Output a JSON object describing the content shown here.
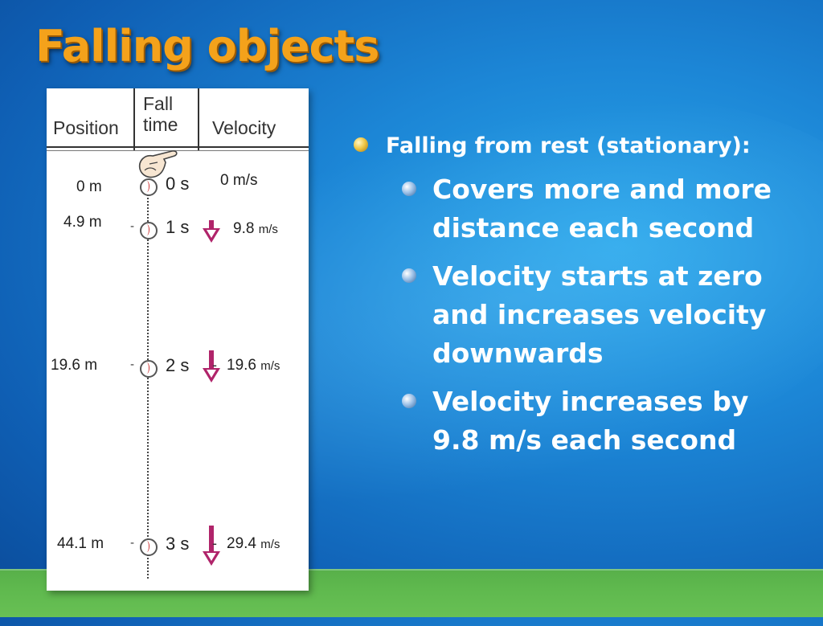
{
  "slide": {
    "title": "Falling objects"
  },
  "figure": {
    "headers": {
      "position": "Position",
      "fall_time": "Fall\ntime",
      "velocity": "Velocity"
    },
    "rows": [
      {
        "position": "0 m",
        "time": "0 s",
        "velocity": "0 m/s",
        "velocity_unit": "",
        "arrow_fraction": 0
      },
      {
        "position": "4.9 m",
        "time": "1 s",
        "velocity": "9.8 ",
        "velocity_unit": "m/s",
        "arrow_fraction": 0.333
      },
      {
        "position": "19.6 m",
        "time": "2 s",
        "velocity": "19.6 ",
        "velocity_unit": "m/s",
        "arrow_fraction": 0.667
      },
      {
        "position": "44.1 m",
        "time": "3 s",
        "velocity": "29.4 ",
        "velocity_unit": "m/s",
        "arrow_fraction": 1.0
      }
    ]
  },
  "bullets": {
    "level1": "Falling from rest (stationary):",
    "level2": [
      "Covers more and more distance each second",
      "Velocity starts at zero and increases velocity downwards",
      "Velocity increases by 9.8 m/s each second"
    ]
  },
  "colors": {
    "title": "#f4a21b",
    "arrow": "#b0246a",
    "background": "#1c86d6",
    "ground": "#5fb94e"
  }
}
